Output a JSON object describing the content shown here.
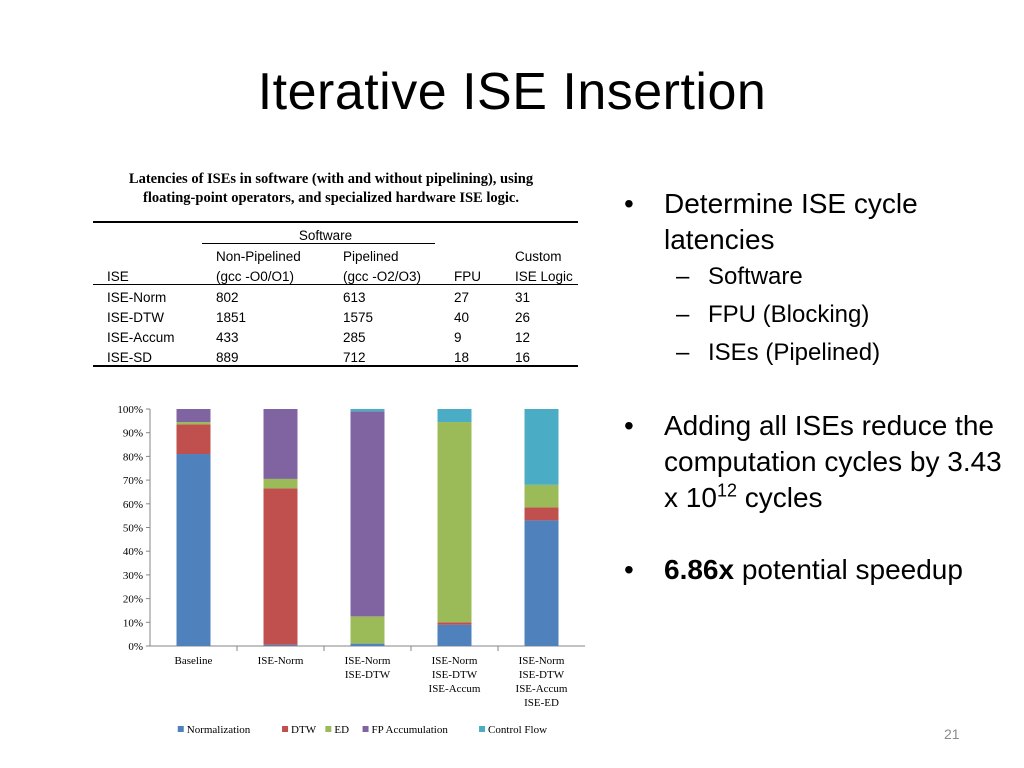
{
  "slide": {
    "title": "Iterative ISE Insertion",
    "number": "21"
  },
  "table": {
    "caption_line1": "Latencies of ISEs in software (with and without pipelining), using",
    "caption_line2": "floating-point operators, and specialized hardware ISE logic.",
    "group_header": "Software",
    "headers": {
      "ise": "ISE",
      "np1": "Non-Pipelined",
      "np2": "(gcc -O0/O1)",
      "p1": "Pipelined",
      "p2": "(gcc -O2/O3)",
      "fpu": "FPU",
      "c1": "Custom",
      "c2": "ISE Logic"
    },
    "rows": [
      {
        "ise": "ISE-Norm",
        "nonpipelined": "802",
        "pipelined": "613",
        "fpu": "27",
        "custom": "31"
      },
      {
        "ise": "ISE-DTW",
        "nonpipelined": "1851",
        "pipelined": "1575",
        "fpu": "40",
        "custom": "26"
      },
      {
        "ise": "ISE-Accum",
        "nonpipelined": "433",
        "pipelined": "285",
        "fpu": "9",
        "custom": "12"
      },
      {
        "ise": "ISE-SD",
        "nonpipelined": "889",
        "pipelined": "712",
        "fpu": "18",
        "custom": "16"
      }
    ]
  },
  "chart_data": {
    "type": "bar",
    "stacked": true,
    "normalized": true,
    "categories": [
      [
        "Baseline"
      ],
      [
        "ISE-Norm"
      ],
      [
        "ISE-Norm",
        "ISE-DTW"
      ],
      [
        "ISE-Norm",
        "ISE-DTW",
        "ISE-Accum"
      ],
      [
        "ISE-Norm",
        "ISE-DTW",
        "ISE-Accum",
        "ISE-ED"
      ]
    ],
    "series": [
      {
        "name": "Normalization",
        "color": "#4f81bd",
        "values": [
          81,
          0.5,
          1,
          9,
          53
        ]
      },
      {
        "name": "DTW",
        "color": "#c0504d",
        "values": [
          12.5,
          66,
          0,
          1,
          5.5
        ]
      },
      {
        "name": "ED",
        "color": "#9bbb59",
        "values": [
          1,
          4,
          11.5,
          84.5,
          9.5
        ]
      },
      {
        "name": "FP Accumulation",
        "color": "#8064a2",
        "values": [
          5.5,
          29.5,
          86.5,
          0,
          0
        ]
      },
      {
        "name": "Control Flow",
        "color": "#4bacc6",
        "values": [
          0,
          0,
          1,
          5.5,
          32
        ]
      }
    ],
    "yticks": [
      "0%",
      "10%",
      "20%",
      "30%",
      "40%",
      "50%",
      "60%",
      "70%",
      "80%",
      "90%",
      "100%"
    ],
    "ylim": [
      0,
      100
    ],
    "legend_position": "bottom",
    "grid": false
  },
  "bullets": {
    "b1": "Determine ISE cycle latencies",
    "subs": [
      "Software",
      "FPU (Blocking)",
      "ISEs (Pipelined)"
    ],
    "b2_part1": "Adding all ISEs reduce the computation cycles by 3.43 x 10",
    "b2_sup": "12",
    "b2_part2": " cycles",
    "b3_bold": "6.86x",
    "b3_rest": " potential speedup"
  }
}
